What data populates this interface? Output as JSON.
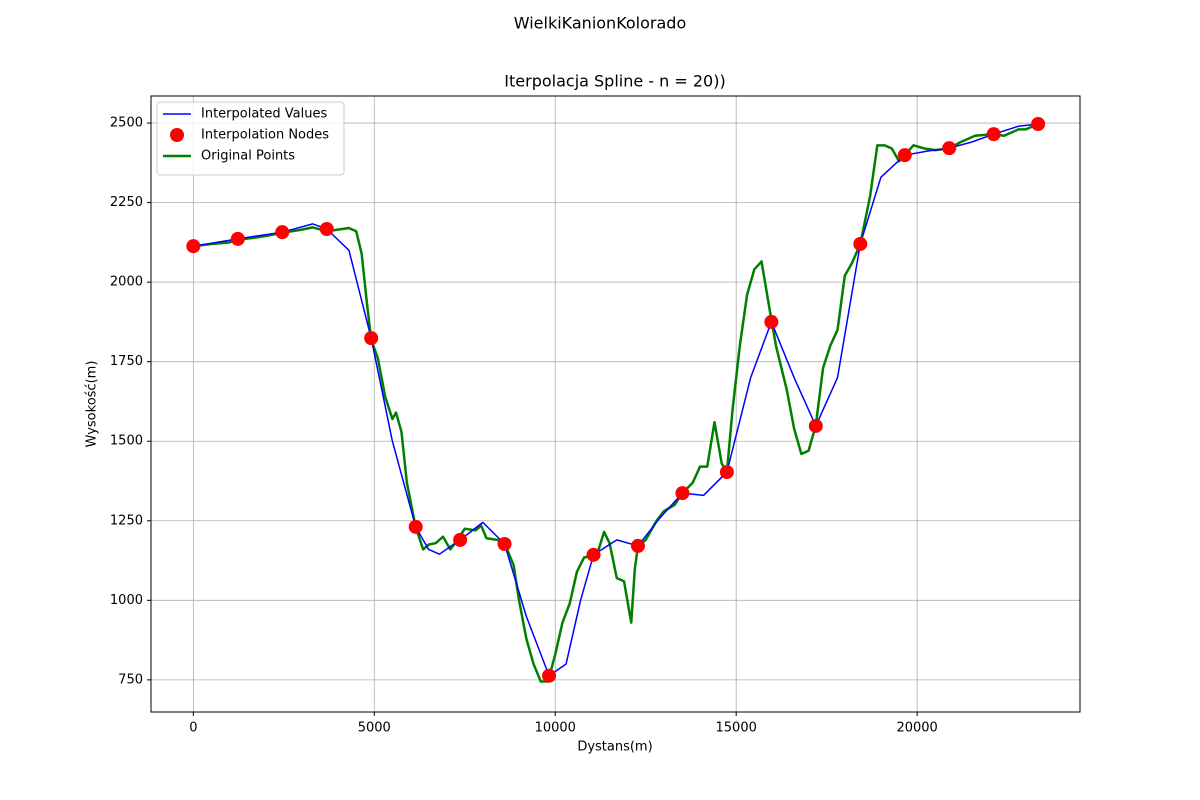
{
  "chart_data": {
    "type": "line",
    "suptitle": "WielkiKanionKolorado",
    "title": "Iterpolacja Spline - n = 20))",
    "xlabel": "Dystans(m)",
    "ylabel": "Wysokość(m)",
    "xlim": [
      -1170,
      24500
    ],
    "ylim": [
      649,
      2585
    ],
    "xticks": [
      0,
      5000,
      10000,
      15000,
      20000
    ],
    "yticks": [
      750,
      1000,
      1250,
      1500,
      1750,
      2000,
      2250,
      2500
    ],
    "grid": true,
    "legend": "upper left",
    "series": [
      {
        "name": "Interpolated Values",
        "type": "line",
        "color": "#0000ff",
        "width": 1.5,
        "x": [
          0,
          1229,
          2457,
          3300,
          3686,
          4300,
          4914,
          5500,
          6143,
          6500,
          6800,
          7372,
          8000,
          8600,
          9200,
          9829,
          10300,
          10700,
          11058,
          11700,
          12286,
          12900,
          13515,
          14100,
          14743,
          15400,
          15972,
          16600,
          17200,
          17800,
          18429,
          19000,
          19658,
          20300,
          20886,
          21500,
          22115,
          22800,
          23343
        ],
        "values": [
          2113,
          2136,
          2157,
          2183,
          2167,
          2100,
          1824,
          1500,
          1231,
          1160,
          1145,
          1190,
          1245,
          1177,
          950,
          763,
          800,
          1000,
          1143,
          1190,
          1171,
          1260,
          1337,
          1330,
          1403,
          1700,
          1875,
          1700,
          1548,
          1700,
          2120,
          2330,
          2399,
          2412,
          2421,
          2440,
          2465,
          2490,
          2497
        ]
      },
      {
        "name": "Interpolation Nodes",
        "type": "scatter",
        "color": "#ff0000",
        "x": [
          0,
          1229,
          2457,
          3686,
          4914,
          6143,
          7372,
          8600,
          9829,
          11058,
          12286,
          13515,
          14743,
          15972,
          17200,
          18429,
          19658,
          20886,
          22115,
          23343
        ],
        "values": [
          2113,
          2136,
          2157,
          2167,
          1824,
          1231,
          1190,
          1177,
          763,
          1143,
          1171,
          1337,
          1403,
          1875,
          1548,
          2120,
          2399,
          2421,
          2465,
          2497
        ]
      },
      {
        "name": "Original Points",
        "type": "line",
        "color": "#008000",
        "width": 2.5,
        "x": [
          0,
          500,
          1000,
          1229,
          1700,
          2000,
          2457,
          3000,
          3300,
          3686,
          4000,
          4300,
          4500,
          4650,
          4800,
          4914,
          5100,
          5300,
          5500,
          5600,
          5750,
          5900,
          6143,
          6350,
          6500,
          6700,
          6900,
          7100,
          7300,
          7500,
          7800,
          7950,
          8100,
          8400,
          8600,
          8850,
          9000,
          9200,
          9400,
          9600,
          9800,
          10000,
          10200,
          10400,
          10600,
          10800,
          11058,
          11200,
          11350,
          11500,
          11700,
          11900,
          12100,
          12200,
          12286,
          12500,
          12800,
          13000,
          13300,
          13515,
          13800,
          14000,
          14200,
          14400,
          14600,
          14743,
          14900,
          15100,
          15300,
          15500,
          15700,
          15900,
          16100,
          16400,
          16600,
          16800,
          17000,
          17200,
          17400,
          17600,
          17800,
          18000,
          18200,
          18429,
          18700,
          18900,
          19100,
          19300,
          19500,
          19658,
          19900,
          20200,
          20500,
          20886,
          21200,
          21600,
          22115,
          22400,
          22800,
          23000,
          23343
        ],
        "values": [
          2113,
          2120,
          2125,
          2133,
          2140,
          2145,
          2155,
          2165,
          2172,
          2160,
          2165,
          2170,
          2160,
          2090,
          1930,
          1820,
          1760,
          1640,
          1570,
          1590,
          1530,
          1370,
          1230,
          1160,
          1175,
          1180,
          1200,
          1160,
          1190,
          1225,
          1220,
          1235,
          1195,
          1190,
          1180,
          1110,
          1000,
          880,
          800,
          745,
          745,
          830,
          930,
          990,
          1090,
          1135,
          1140,
          1160,
          1215,
          1180,
          1070,
          1060,
          930,
          1100,
          1171,
          1190,
          1250,
          1280,
          1300,
          1337,
          1370,
          1420,
          1420,
          1560,
          1430,
          1403,
          1600,
          1800,
          1960,
          2040,
          2065,
          1930,
          1800,
          1660,
          1540,
          1460,
          1470,
          1550,
          1730,
          1800,
          1850,
          2020,
          2060,
          2120,
          2270,
          2430,
          2430,
          2420,
          2380,
          2400,
          2430,
          2420,
          2415,
          2420,
          2440,
          2460,
          2465,
          2460,
          2480,
          2480,
          2497
        ]
      }
    ]
  }
}
